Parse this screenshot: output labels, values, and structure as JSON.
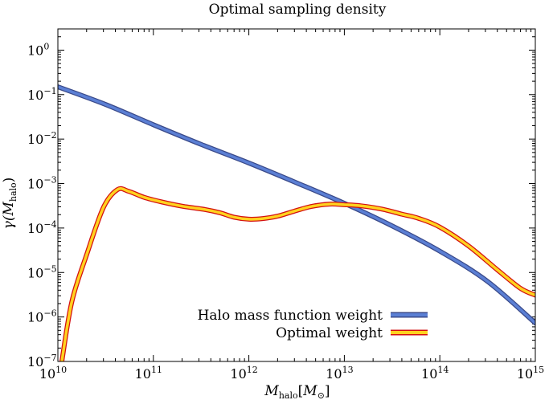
{
  "chart_data": {
    "type": "line",
    "title": "Optimal sampling density",
    "xlabel": {
      "main": "M",
      "sub": "halo",
      "bracket_open": "[",
      "unit_main": "M",
      "unit_sub": "⊙",
      "bracket_close": "]"
    },
    "ylabel": {
      "main": "γ(M",
      "sub": "halo",
      "close": ")"
    },
    "x_scale": "log",
    "y_scale": "log",
    "xlim": [
      10000000000.0,
      1000000000000000.0
    ],
    "ylim": [
      1e-07,
      3.0
    ],
    "x_ticks": [
      {
        "base": "10",
        "exp": "10",
        "value": 10000000000.0
      },
      {
        "base": "10",
        "exp": "11",
        "value": 100000000000.0
      },
      {
        "base": "10",
        "exp": "12",
        "value": 1000000000000.0
      },
      {
        "base": "10",
        "exp": "13",
        "value": 10000000000000.0
      },
      {
        "base": "10",
        "exp": "14",
        "value": 100000000000000.0
      },
      {
        "base": "10",
        "exp": "15",
        "value": 1000000000000000.0
      }
    ],
    "y_ticks": [
      {
        "base": "10",
        "exp": "0",
        "value": 1.0
      },
      {
        "base": "10",
        "exp": "−1",
        "value": 0.1
      },
      {
        "base": "10",
        "exp": "−2",
        "value": 0.01
      },
      {
        "base": "10",
        "exp": "−3",
        "value": 0.001
      },
      {
        "base": "10",
        "exp": "−4",
        "value": 0.0001
      },
      {
        "base": "10",
        "exp": "−5",
        "value": 1e-05
      },
      {
        "base": "10",
        "exp": "−6",
        "value": 1e-06
      },
      {
        "base": "10",
        "exp": "−7",
        "value": 1e-07
      }
    ],
    "legend_position": "bottom-right",
    "series": [
      {
        "name": "Halo mass function weight",
        "color": "#5b7fd4",
        "edge_color": "#3a4a8a",
        "x": [
          10000000000.0,
          31600000000.0,
          100000000000.0,
          316000000000.0,
          1000000000000.0,
          3160000000000.0,
          10000000000000.0,
          31600000000000.0,
          100000000000000.0,
          316000000000000.0,
          1000000000000000.0
        ],
        "y": [
          0.15,
          0.06,
          0.021,
          0.0076,
          0.0029,
          0.00104,
          0.00036,
          0.000112,
          3.02e-05,
          6.3e-06,
          7.3e-07
        ]
      },
      {
        "name": "Optimal weight",
        "color": "#ffd21f",
        "edge_color": "#d41010",
        "x": [
          11000000000.0,
          14000000000.0,
          20000000000.0,
          30000000000.0,
          42000000000.0,
          55000000000.0,
          80000000000.0,
          120000000000.0,
          200000000000.0,
          350000000000.0,
          500000000000.0,
          700000000000.0,
          1000000000000.0,
          1400000000000.0,
          2000000000000.0,
          3000000000000.0,
          4500000000000.0,
          7000000000000.0,
          10000000000000.0,
          15000000000000.0,
          25000000000000.0,
          40000000000000.0,
          60000000000000.0,
          100000000000000.0,
          200000000000000.0,
          400000000000000.0,
          700000000000000.0,
          1000000000000000.0
        ],
        "y": [
          1e-07,
          2.2e-06,
          2.5e-05,
          0.00029,
          0.00073,
          0.00067,
          0.00049,
          0.00039,
          0.00031,
          0.00026,
          0.00022,
          0.000175,
          0.000158,
          0.000163,
          0.000185,
          0.00024,
          0.000305,
          0.000345,
          0.000335,
          0.000315,
          0.000265,
          0.000205,
          0.000165,
          0.000105,
          3.95e-05,
          1.15e-05,
          4.4e-06,
          3.1e-06
        ]
      }
    ]
  }
}
